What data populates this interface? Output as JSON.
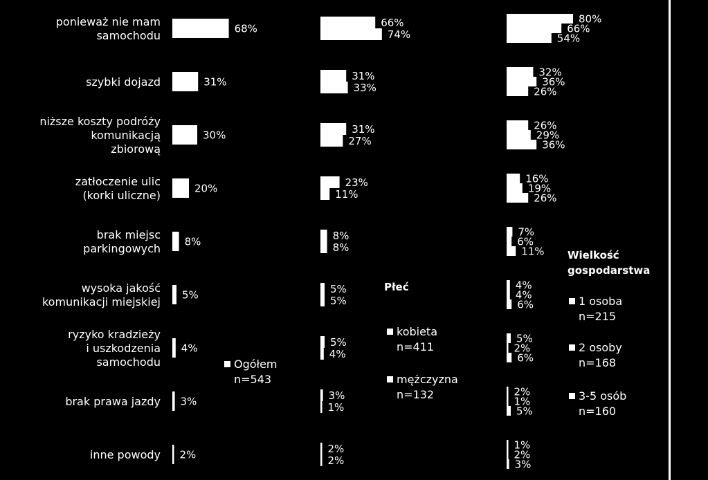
{
  "chart_data": {
    "type": "bar",
    "orientation": "horizontal",
    "categories": [
      "ponieważ nie mam samochodu",
      "szybki dojazd",
      "niższe koszty podróży komunikacją zbiorową",
      "zatłoczenie ulic (korki uliczne)",
      "brak miejsc parkingowych",
      "wysoka jakość komunikacji miejskiej",
      "ryzyko kradzieży i uszkodzenia samochodu",
      "brak prawa jazdy",
      "inne powody"
    ],
    "category_lines": [
      [
        "ponieważ nie mam",
        "samochodu"
      ],
      [
        "szybki dojazd"
      ],
      [
        "niższe koszty podróży",
        "komunikacją",
        "zbiorową"
      ],
      [
        "zatłoczenie ulic",
        "(korki uliczne)"
      ],
      [
        "brak miejsc",
        "parkingowych"
      ],
      [
        "wysoka jakość",
        "komunikacji miejskiej"
      ],
      [
        "ryzyko kradzieży",
        "i uszkodzenia",
        "samochodu"
      ],
      [
        "brak prawa jazdy"
      ],
      [
        "inne powody"
      ]
    ],
    "groups": [
      {
        "legend_title": "",
        "series": [
          {
            "name": "Ogółem",
            "n": "n=543",
            "values": [
              68,
              31,
              30,
              20,
              8,
              5,
              4,
              3,
              2
            ]
          }
        ]
      },
      {
        "legend_title": "Płeć",
        "series": [
          {
            "name": "kobieta",
            "n": "n=411",
            "values": [
              66,
              31,
              31,
              23,
              8,
              5,
              5,
              3,
              2
            ]
          },
          {
            "name": "mężczyzna",
            "n": "n=132",
            "values": [
              74,
              33,
              27,
              11,
              8,
              5,
              4,
              1,
              2
            ]
          }
        ]
      },
      {
        "legend_title": "Wielkość gospodarstwa",
        "legend_title_lines": [
          "Wielkość",
          "gospodarstwa"
        ],
        "series": [
          {
            "name": "1 osoba",
            "n": "n=215",
            "values": [
              80,
              32,
              26,
              16,
              7,
              4,
              5,
              2,
              1
            ]
          },
          {
            "name": "2 osoby",
            "n": "n=168",
            "values": [
              66,
              36,
              29,
              19,
              6,
              4,
              2,
              1,
              2
            ]
          },
          {
            "name": "3-5 osób",
            "n": "n=160",
            "values": [
              54,
              26,
              36,
              26,
              11,
              6,
              6,
              5,
              3
            ]
          }
        ]
      }
    ],
    "value_suffix": "%",
    "bar_color": "#ffffff",
    "background": "#000000",
    "grid": false
  }
}
